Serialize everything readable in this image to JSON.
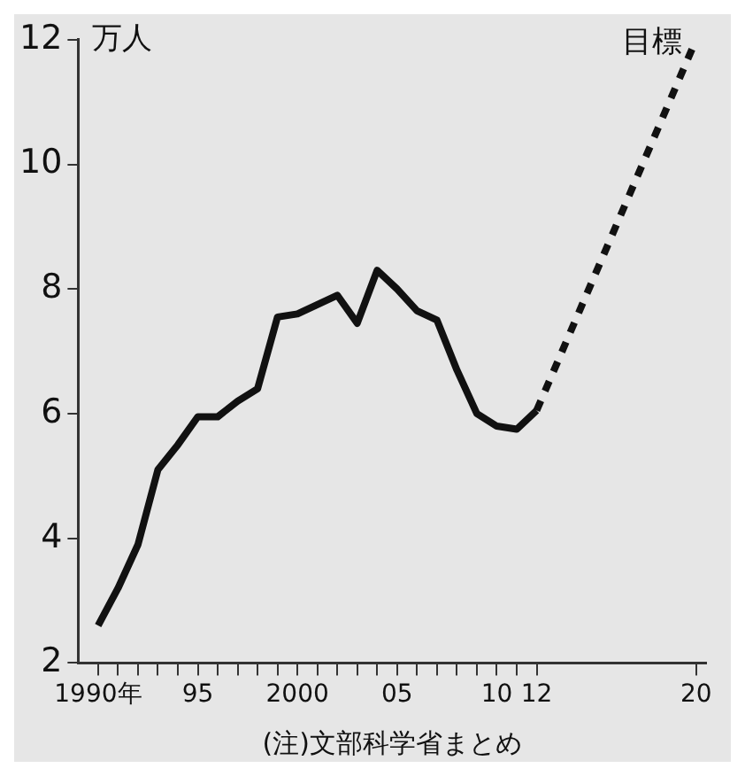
{
  "chart_data": {
    "type": "line",
    "ylabel": "万人",
    "annotations": [
      "(注)文部科学省まとめ"
    ],
    "xlim": [
      1989,
      2020.5
    ],
    "xticks": [
      {
        "value": 1990,
        "label": "1990年"
      },
      {
        "value": 1991,
        "label": null
      },
      {
        "value": 1992,
        "label": null
      },
      {
        "value": 1993,
        "label": null
      },
      {
        "value": 1994,
        "label": null
      },
      {
        "value": 1995,
        "label": "95"
      },
      {
        "value": 1996,
        "label": null
      },
      {
        "value": 1997,
        "label": null
      },
      {
        "value": 1998,
        "label": null
      },
      {
        "value": 1999,
        "label": null
      },
      {
        "value": 2000,
        "label": "2000"
      },
      {
        "value": 2001,
        "label": null
      },
      {
        "value": 2002,
        "label": null
      },
      {
        "value": 2003,
        "label": null
      },
      {
        "value": 2004,
        "label": null
      },
      {
        "value": 2005,
        "label": "05"
      },
      {
        "value": 2006,
        "label": null
      },
      {
        "value": 2007,
        "label": null
      },
      {
        "value": 2008,
        "label": null
      },
      {
        "value": 2009,
        "label": null
      },
      {
        "value": 2010,
        "label": "10"
      },
      {
        "value": 2011,
        "label": null
      },
      {
        "value": 2012,
        "label": "12"
      },
      {
        "value": 2020,
        "label": "20"
      }
    ],
    "ylim": [
      2,
      12
    ],
    "yticks": [
      2,
      4,
      6,
      8,
      10,
      12
    ],
    "grid": false,
    "legend": false,
    "marker": "none",
    "series": [
      {
        "color": "#111111",
        "line_style": "solid",
        "x": [
          1990,
          1991,
          1992,
          1993,
          1994,
          1995,
          1996,
          1997,
          1998,
          1999,
          2000,
          2001,
          2002,
          2003,
          2004,
          2005,
          2006,
          2007,
          2008,
          2009,
          2010,
          2011,
          2012
        ],
        "values": [
          2.6,
          3.2,
          3.9,
          5.1,
          5.5,
          5.95,
          5.95,
          6.2,
          6.4,
          7.55,
          7.6,
          7.75,
          7.9,
          7.45,
          8.3,
          8.0,
          7.65,
          7.5,
          6.7,
          6.0,
          5.8,
          5.75,
          6.05
        ]
      },
      {
        "name": "目標",
        "color": "#111111",
        "line_style": "dashed",
        "x": [
          2012,
          2020
        ],
        "values": [
          6.05,
          12
        ]
      }
    ]
  }
}
